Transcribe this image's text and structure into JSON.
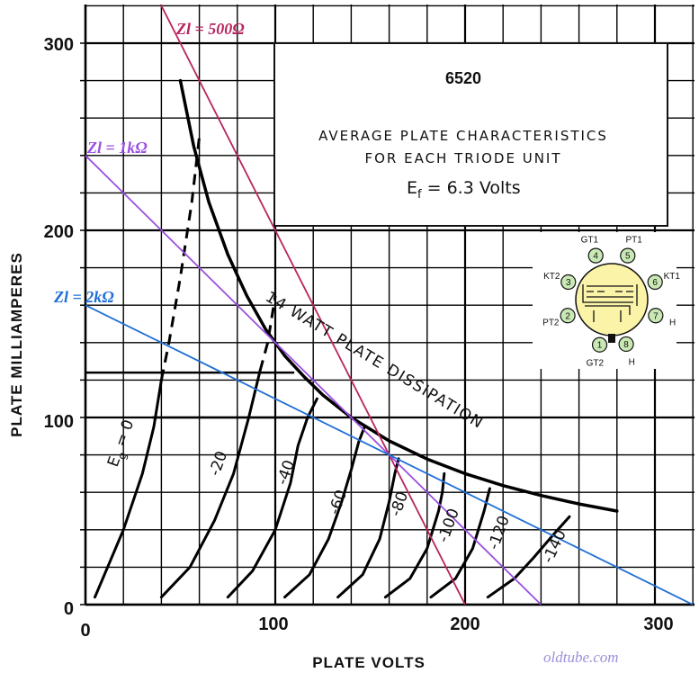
{
  "chart_data": {
    "type": "line",
    "title": "6520",
    "subtitle_lines": [
      "AVERAGE PLATE CHARACTERISTICS",
      "FOR EACH TRIODE UNIT"
    ],
    "filament_label": "6.3 Volts",
    "xlabel": "PLATE VOLTS",
    "ylabel": "PLATE MILLIAMPERES",
    "xlim": [
      0,
      320
    ],
    "ylim": [
      0,
      320
    ],
    "x_ticks": [
      "0",
      "100",
      "200",
      "300"
    ],
    "y_ticks": [
      "0",
      "100",
      "200",
      "300"
    ],
    "grid": true,
    "series": [
      {
        "name": "Eg = 0",
        "points": [
          [
            5,
            4
          ],
          [
            20,
            40
          ],
          [
            30,
            70
          ],
          [
            36,
            95
          ],
          [
            40,
            120
          ],
          [
            44,
            140
          ],
          [
            50,
            175
          ],
          [
            56,
            215
          ],
          [
            60,
            250
          ]
        ],
        "dashed_from_y": 120
      },
      {
        "name": "-20",
        "points": [
          [
            40,
            4
          ],
          [
            55,
            20
          ],
          [
            68,
            45
          ],
          [
            78,
            70
          ],
          [
            86,
            100
          ],
          [
            92,
            125
          ],
          [
            96,
            140
          ],
          [
            100,
            165
          ]
        ],
        "dashed_from_y": 125
      },
      {
        "name": "-40",
        "points": [
          [
            75,
            4
          ],
          [
            88,
            18
          ],
          [
            100,
            40
          ],
          [
            108,
            65
          ],
          [
            112,
            85
          ],
          [
            117,
            100
          ],
          [
            122,
            110
          ]
        ]
      },
      {
        "name": "-60",
        "points": [
          [
            105,
            4
          ],
          [
            118,
            16
          ],
          [
            128,
            35
          ],
          [
            135,
            55
          ],
          [
            140,
            72
          ],
          [
            144,
            87
          ],
          [
            147,
            95
          ]
        ]
      },
      {
        "name": "-80",
        "points": [
          [
            133,
            4
          ],
          [
            146,
            16
          ],
          [
            155,
            35
          ],
          [
            160,
            55
          ],
          [
            163,
            70
          ],
          [
            165,
            78
          ]
        ]
      },
      {
        "name": "-100",
        "points": [
          [
            158,
            4
          ],
          [
            171,
            14
          ],
          [
            180,
            30
          ],
          [
            186,
            50
          ],
          [
            188,
            60
          ],
          [
            189,
            70
          ]
        ]
      },
      {
        "name": "-120",
        "points": [
          [
            182,
            4
          ],
          [
            195,
            14
          ],
          [
            204,
            30
          ],
          [
            210,
            50
          ],
          [
            213,
            62
          ]
        ]
      },
      {
        "name": "-140",
        "points": [
          [
            212,
            4
          ],
          [
            226,
            14
          ],
          [
            236,
            25
          ],
          [
            247,
            38
          ],
          [
            255,
            47
          ]
        ]
      }
    ],
    "dissipation_curve": {
      "name": "14 WATT PLATE DISSIPATION",
      "points": [
        [
          50,
          280
        ],
        [
          57,
          245
        ],
        [
          65,
          215
        ],
        [
          75,
          187
        ],
        [
          85,
          165
        ],
        [
          95,
          147
        ],
        [
          105,
          133
        ],
        [
          115,
          122
        ],
        [
          125,
          112
        ],
        [
          140,
          100
        ],
        [
          160,
          87.5
        ],
        [
          180,
          77.8
        ],
        [
          200,
          70
        ],
        [
          220,
          63.6
        ],
        [
          240,
          58.3
        ],
        [
          260,
          53.8
        ],
        [
          280,
          50
        ]
      ]
    },
    "load_lines": [
      {
        "name": "Zl = 500Ω",
        "color": "#b8255f",
        "x0": 200,
        "y0": 400
      },
      {
        "name": "Zl = 1kΩ",
        "color": "#9b50e0",
        "x0": 240,
        "y0": 240
      },
      {
        "name": "Zl = 2kΩ",
        "color": "#1f6fd6",
        "x0": 320,
        "y0": 160
      }
    ],
    "annotations": [
      "14 WATT PLATE DISSIPATION"
    ]
  },
  "pinout": {
    "pins": [
      {
        "num": "1",
        "label": "GT2"
      },
      {
        "num": "2",
        "label": "PT2"
      },
      {
        "num": "3",
        "label": "KT2"
      },
      {
        "num": "4",
        "label": "GT1"
      },
      {
        "num": "5",
        "label": "PT1"
      },
      {
        "num": "6",
        "label": "KT1"
      },
      {
        "num": "7",
        "label": "H"
      },
      {
        "num": "8",
        "label": "H"
      }
    ]
  },
  "watermark": "oldtube.com",
  "colors": {
    "grid": "#000000",
    "curve": "#000000",
    "pin_fill": "#c9e8b4",
    "socket_fill": "#fbf3a8"
  }
}
